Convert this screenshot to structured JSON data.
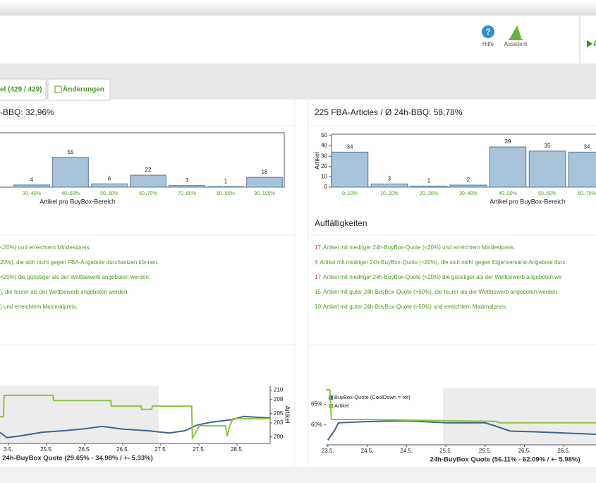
{
  "header": {
    "help": "Hilfe",
    "assistant": "Assistent",
    "action": "A"
  },
  "tabs": [
    "el (429 / 429)",
    "Änderungen"
  ],
  "left": {
    "title": "-BBQ: 32,96%",
    "issues": [
      {
        "text": "<20%) und erreichtem Mindestpreis."
      },
      {
        "text": "20%), die sich nicht gegen FBA-Angebote durchsetzen können."
      },
      {
        "text": "<20%) die günstiger als der Wettbewerb angeboten werden."
      },
      {
        "text": "), die teurer als der Wettbewerb angeboten werden."
      },
      {
        "text": ") und erreichtem Maximalpreis."
      }
    ]
  },
  "right": {
    "title": "225 FBA-Articles / Ø 24h-BBQ: 58,78%",
    "issues_title": "Auffälligkeiten",
    "issues": [
      {
        "count": 17,
        "count_color": "#d9302c",
        "text": "Artikel mit niedriger 24h-BuyBox-Quote (<20%) und erreichtem Mindestpreis."
      },
      {
        "count": 4,
        "count_color": "#d9302c",
        "text": "Artikel mit niedriger 24h-BuyBox-Quote (<20%), die sich nicht gegen Eigenversand-Angebote durc"
      },
      {
        "count": 17,
        "count_color": "#d9302c",
        "text": "Artikel mit niedriger 24h-BuyBox-Quote (<20%) die günstiger als der Wettbewerb angeboten we"
      },
      {
        "count": 15,
        "count_color": "#4e9a1e",
        "text": "Artikel mit guter 24h-BuyBox-Quote (>50%), die teurer als der Wettbewerb angeboten werden."
      },
      {
        "count": 10,
        "count_color": "#4e9a1e",
        "text": "Artikel mit guter 24h-BuyBox-Quote (>50%) und erreichtem Maximalpreis."
      }
    ]
  },
  "chart_data": [
    {
      "type": "bar",
      "x_label": "Artikel pro BuyBox-Bereich",
      "categories": [
        "30..40%",
        "40..50%",
        "50..60%",
        "60..70%",
        "70..80%",
        "80..90%",
        "90..100%"
      ],
      "values": [
        4,
        55,
        6,
        22,
        3,
        1,
        18
      ],
      "ylim": [
        0,
        100
      ],
      "color": "#a9c4d9"
    },
    {
      "type": "bar",
      "x_label": "Artikel pro BuyBox-Bereich",
      "y_label": "Artikel",
      "categories": [
        "0..10%",
        "10..20%",
        "20..30%",
        "30..40%",
        "40..50%",
        "50..60%",
        "60..70%"
      ],
      "values": [
        34,
        3,
        1,
        2,
        39,
        35,
        34
      ],
      "ylim": [
        0,
        51.4
      ],
      "yticks": [
        0,
        10,
        20,
        30,
        40,
        50
      ],
      "color": "#a9c4d9"
    },
    {
      "type": "line",
      "caption": "24h-BuyBox Quote (29.65% - 34.98% / +- 5.33%)",
      "y2_label": "Artikel",
      "xlim": [
        -0.22,
        6.87
      ],
      "xticks": [
        {
          "value": 0,
          "label": "3.5."
        },
        {
          "value": 1,
          "label": "25.5."
        },
        {
          "value": 2,
          "label": "26.5."
        },
        {
          "value": 3,
          "label": "26.5."
        },
        {
          "value": 4,
          "label": "27.5."
        },
        {
          "value": 5,
          "label": "27.5."
        },
        {
          "value": 6,
          "label": "28.5."
        }
      ],
      "ylim": [
        25,
        40
      ],
      "y2lim": [
        198.6,
        211
      ],
      "y2ticks": [
        200,
        203,
        205,
        208,
        210
      ],
      "series": [
        {
          "color": "#3d6594",
          "x": [
            -0.22,
            -0.04,
            0.33,
            0.89,
            1.44,
            2.0,
            2.46,
            3.02,
            3.67,
            4.22,
            4.63,
            4.96,
            5.33,
            5.89,
            6.17,
            6.87
          ],
          "values": [
            27.9,
            26.5,
            27.0,
            27.9,
            28.3,
            28.8,
            29.4,
            28.7,
            28.3,
            27.7,
            28.3,
            29.8,
            30.5,
            31.2,
            32.0,
            31.6
          ]
        },
        {
          "color": "#8cc63f",
          "axis": "y2",
          "x": [
            -0.22,
            -0.13,
            -0.11,
            1.17,
            1.19,
            2.69,
            2.7,
            3.48,
            3.5,
            3.76,
            3.78,
            4.81,
            4.83,
            5.02,
            5.7,
            5.74,
            5.81,
            5.89,
            6.87
          ],
          "values": [
            204.3,
            204.3,
            208.9,
            208.9,
            207.8,
            207.8,
            206.6,
            206.6,
            205.9,
            205.9,
            206.6,
            206.6,
            199.8,
            202.4,
            202.4,
            200.1,
            202.4,
            203.9,
            203.9
          ]
        }
      ]
    },
    {
      "type": "line",
      "caption": "24h-BuyBox Quote (56.11% - 62.09% / +- 5.98%)",
      "xlim": [
        -0.05,
        6.91
      ],
      "xticks": [
        {
          "value": 0,
          "label": "23.5."
        },
        {
          "value": 1,
          "label": "24.5."
        },
        {
          "value": 2,
          "label": "24.5."
        },
        {
          "value": 3,
          "label": "25.5."
        },
        {
          "value": 4,
          "label": "25.5."
        },
        {
          "value": 5,
          "label": "26.5."
        },
        {
          "value": 6,
          "label": "26.5."
        }
      ],
      "ylim": [
        55.17,
        68.83
      ],
      "yticks": [
        {
          "value": 65,
          "label": "65%"
        },
        {
          "value": 60,
          "label": "60%"
        }
      ],
      "y2lim": [
        199,
        211
      ],
      "series": [
        {
          "name": "BuyBox-Quote (CoolDown = rot)",
          "color": "#3d6594",
          "x": [
            0,
            0.18,
            0.27,
            1.0,
            2.0,
            3.0,
            4.0,
            4.27,
            4.64,
            5.36,
            6.09,
            6.91
          ],
          "values": [
            56.3,
            58.8,
            60.5,
            60.8,
            61.0,
            60.5,
            60.5,
            59.7,
            58.5,
            58.3,
            58.0,
            57.7
          ]
        },
        {
          "name": "Artikel",
          "color": "#8cc63f",
          "axis": "y2",
          "x": [
            -0.05,
            0.05,
            0.09,
            1.0,
            4.27,
            4.36,
            6.91
          ],
          "values": [
            210.7,
            210.7,
            204.4,
            204.4,
            204.0,
            203.7,
            203.7
          ]
        }
      ]
    }
  ]
}
